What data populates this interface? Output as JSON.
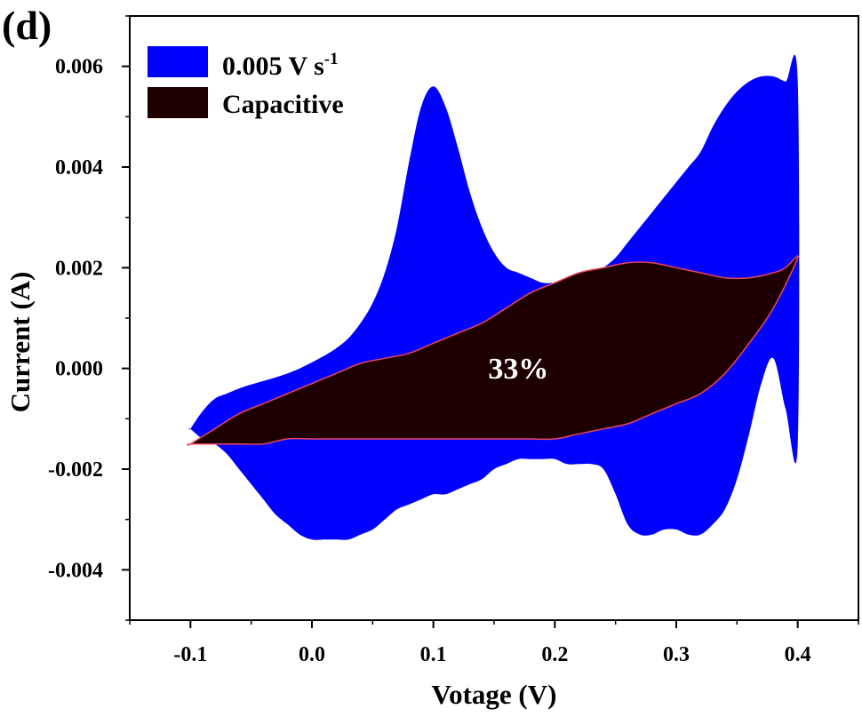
{
  "panel_label": "(d)",
  "chart_data": {
    "type": "area",
    "xlabel": "Votage (V)",
    "ylabel": "Current (A)",
    "xlim": [
      -0.15,
      0.45
    ],
    "ylim": [
      -0.005,
      0.007
    ],
    "x_ticks": [
      -0.1,
      0.0,
      0.1,
      0.2,
      0.3,
      0.4
    ],
    "x_tick_labels": [
      "-0.1",
      "0.0",
      "0.1",
      "0.2",
      "0.3",
      "0.4"
    ],
    "y_ticks": [
      -0.004,
      -0.002,
      0.0,
      0.002,
      0.004,
      0.006
    ],
    "y_tick_labels": [
      "-0.004",
      "-0.002",
      "0.000",
      "0.002",
      "0.004",
      "0.006"
    ],
    "legend_position": "top-left",
    "legend": [
      {
        "label_main": "0.005 V s",
        "label_sup": "-1",
        "color": "#0000ff"
      },
      {
        "label_main": "Capacitive",
        "label_sup": "",
        "color": "#1f0000"
      }
    ],
    "annotation": {
      "text": "33%",
      "x": 0.17,
      "y": -0.0002
    },
    "series": [
      {
        "name": "0.005 V s-1",
        "color": "#0000ff",
        "x": [
          -0.1,
          -0.09,
          -0.08,
          -0.07,
          -0.06,
          -0.05,
          -0.04,
          -0.03,
          -0.02,
          -0.01,
          0.0,
          0.01,
          0.02,
          0.03,
          0.04,
          0.05,
          0.06,
          0.07,
          0.08,
          0.09,
          0.1,
          0.11,
          0.12,
          0.13,
          0.14,
          0.15,
          0.16,
          0.17,
          0.18,
          0.19,
          0.2,
          0.21,
          0.22,
          0.23,
          0.24,
          0.25,
          0.26,
          0.27,
          0.28,
          0.29,
          0.3,
          0.31,
          0.32,
          0.33,
          0.34,
          0.35,
          0.36,
          0.37,
          0.38,
          0.39,
          0.4,
          0.4,
          0.39,
          0.38,
          0.37,
          0.36,
          0.35,
          0.34,
          0.33,
          0.32,
          0.31,
          0.3,
          0.29,
          0.28,
          0.27,
          0.26,
          0.25,
          0.24,
          0.23,
          0.22,
          0.21,
          0.2,
          0.19,
          0.18,
          0.17,
          0.16,
          0.15,
          0.14,
          0.13,
          0.12,
          0.11,
          0.1,
          0.09,
          0.08,
          0.07,
          0.06,
          0.05,
          0.04,
          0.03,
          0.02,
          0.01,
          0.0,
          -0.01,
          -0.02,
          -0.03,
          -0.04,
          -0.05,
          -0.06,
          -0.07,
          -0.08,
          -0.09,
          -0.1
        ],
        "y": [
          -0.0012,
          -0.00085,
          -0.0006,
          -0.0005,
          -0.0004,
          -0.00032,
          -0.00025,
          -0.00018,
          -0.0001,
          0.0,
          0.00012,
          0.00025,
          0.0004,
          0.0006,
          0.0009,
          0.0013,
          0.0019,
          0.0028,
          0.0041,
          0.0052,
          0.0056,
          0.0052,
          0.0044,
          0.0035,
          0.0028,
          0.0023,
          0.002,
          0.0019,
          0.0018,
          0.0017,
          0.0017,
          0.0017,
          0.00175,
          0.00185,
          0.002,
          0.0022,
          0.0025,
          0.0028,
          0.0031,
          0.0034,
          0.0037,
          0.004,
          0.0043,
          0.0048,
          0.0052,
          0.0055,
          0.0057,
          0.0058,
          0.0058,
          0.0057,
          0.0057,
          -0.0015,
          -0.0008,
          0.0002,
          -0.0003,
          -0.0013,
          -0.0022,
          -0.0028,
          -0.0031,
          -0.0033,
          -0.0033,
          -0.0032,
          -0.0032,
          -0.0033,
          -0.0033,
          -0.0031,
          -0.0025,
          -0.002,
          -0.0019,
          -0.0019,
          -0.0019,
          -0.0018,
          -0.0018,
          -0.0018,
          -0.0018,
          -0.0019,
          -0.002,
          -0.0022,
          -0.0023,
          -0.0024,
          -0.0025,
          -0.0025,
          -0.0026,
          -0.0027,
          -0.0028,
          -0.003,
          -0.0032,
          -0.0033,
          -0.0034,
          -0.0034,
          -0.0034,
          -0.0034,
          -0.0033,
          -0.0031,
          -0.0029,
          -0.0026,
          -0.0023,
          -0.002,
          -0.0017,
          -0.0015,
          -0.0014,
          -0.0012
        ]
      },
      {
        "name": "Capacitive",
        "color": "#1f0000",
        "x": [
          -0.1,
          -0.08,
          -0.06,
          -0.04,
          -0.02,
          0.0,
          0.02,
          0.04,
          0.06,
          0.08,
          0.1,
          0.12,
          0.14,
          0.16,
          0.18,
          0.2,
          0.22,
          0.24,
          0.26,
          0.28,
          0.3,
          0.32,
          0.34,
          0.36,
          0.38,
          0.39,
          0.4,
          0.38,
          0.36,
          0.34,
          0.32,
          0.3,
          0.28,
          0.26,
          0.24,
          0.22,
          0.2,
          0.18,
          0.16,
          0.14,
          0.12,
          0.1,
          0.08,
          0.06,
          0.04,
          0.02,
          0.0,
          -0.02,
          -0.04,
          -0.06,
          -0.08,
          -0.1
        ],
        "y": [
          -0.0015,
          -0.0012,
          -0.0009,
          -0.0007,
          -0.0005,
          -0.0003,
          -0.0001,
          0.0001,
          0.0002,
          0.0003,
          0.0005,
          0.0007,
          0.0009,
          0.0012,
          0.0015,
          0.0017,
          0.0019,
          0.002,
          0.0021,
          0.0021,
          0.002,
          0.0019,
          0.0018,
          0.0018,
          0.0019,
          0.002,
          0.0022,
          0.0012,
          0.0005,
          -0.0001,
          -0.0005,
          -0.0007,
          -0.0009,
          -0.0011,
          -0.0012,
          -0.0013,
          -0.0014,
          -0.0014,
          -0.0014,
          -0.0014,
          -0.0014,
          -0.0014,
          -0.0014,
          -0.0014,
          -0.0014,
          -0.0014,
          -0.0014,
          -0.0014,
          -0.0015,
          -0.0015,
          -0.0015,
          -0.0015
        ]
      }
    ]
  }
}
